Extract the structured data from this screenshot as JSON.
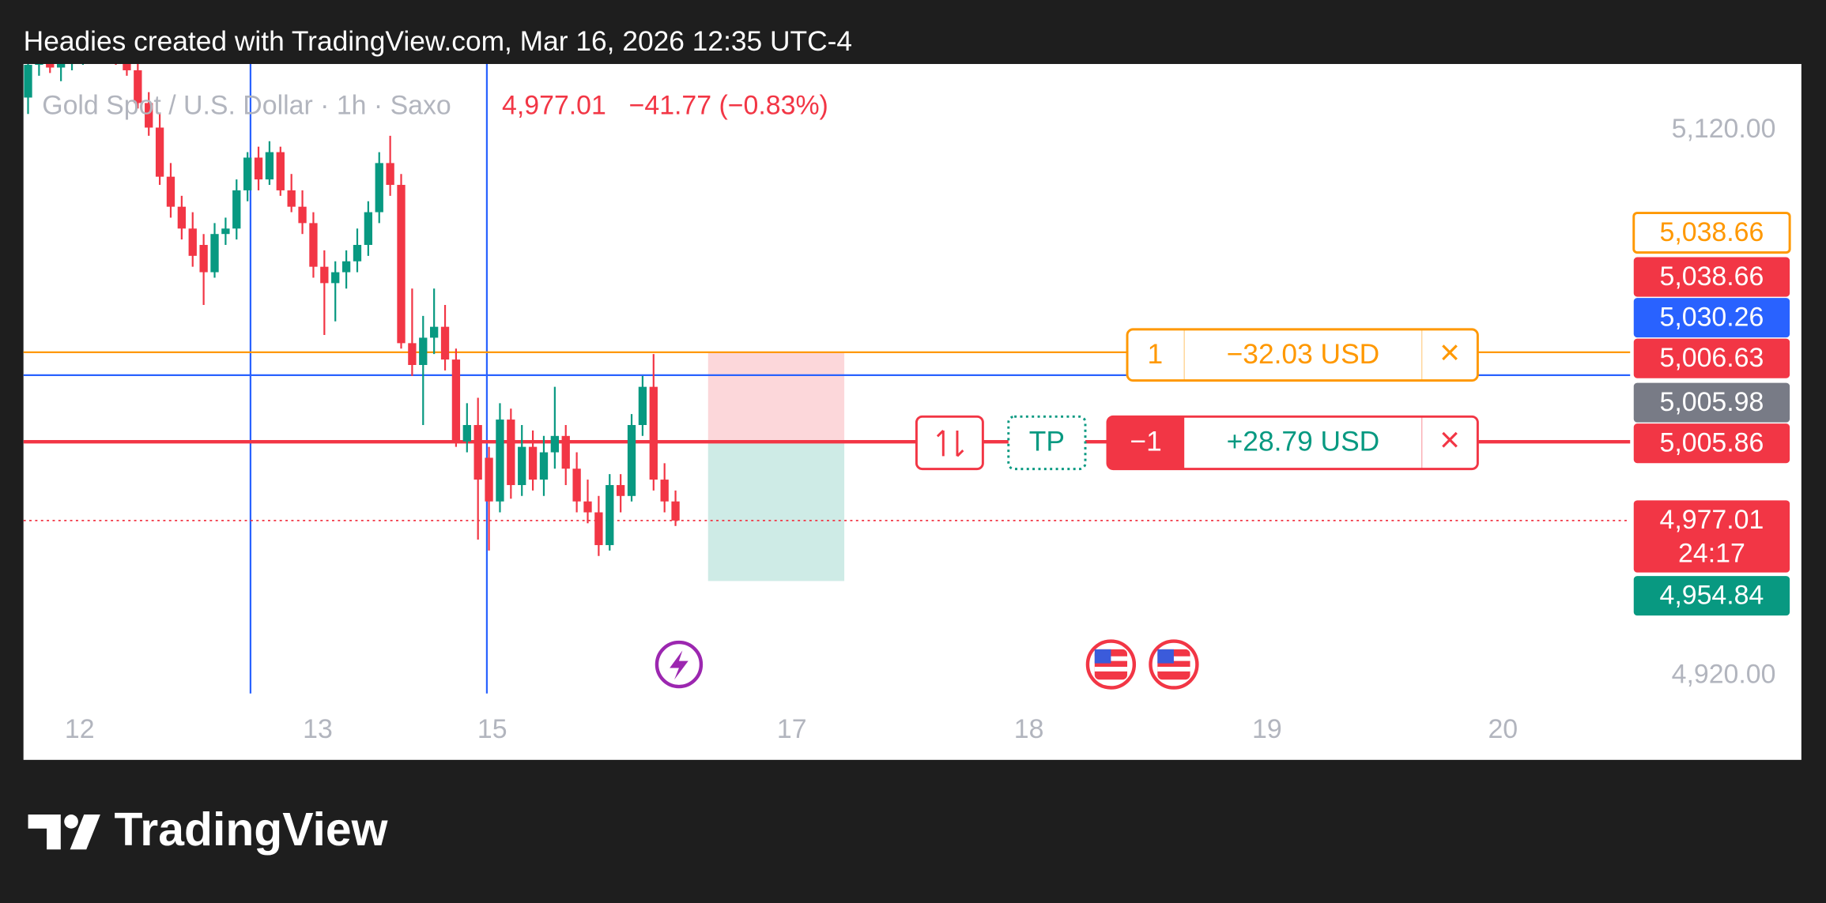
{
  "header": "Headies created with TradingView.com, Mar 16, 2026 12:35 UTC-4",
  "chart_data": {
    "type": "candlestick",
    "title": "Gold Spot / U.S. Dollar · 1h · Saxo",
    "last_price": "4,977.01",
    "change": "−41.77 (−0.83%)",
    "up_color": "#089981",
    "down_color": "#f23645",
    "candles": [
      [
        5132,
        5146,
        5126,
        5144
      ],
      [
        5144,
        5150,
        5140,
        5146
      ],
      [
        5146,
        5150,
        5141,
        5143
      ],
      [
        5143,
        5148,
        5138,
        5145
      ],
      [
        5145,
        5152,
        5142,
        5148
      ],
      [
        5148,
        5154,
        5144,
        5150
      ],
      [
        5150,
        5156,
        5146,
        5152
      ],
      [
        5152,
        5158,
        5147,
        5149
      ],
      [
        5149,
        5155,
        5144,
        5147
      ],
      [
        5147,
        5152,
        5140,
        5142
      ],
      [
        5142,
        5146,
        5128,
        5130
      ],
      [
        5130,
        5134,
        5118,
        5121
      ],
      [
        5121,
        5126,
        5100,
        5103
      ],
      [
        5103,
        5108,
        5088,
        5092
      ],
      [
        5092,
        5096,
        5080,
        5084
      ],
      [
        5084,
        5090,
        5070,
        5074
      ],
      [
        5078,
        5082,
        5056,
        5068
      ],
      [
        5068,
        5086,
        5066,
        5082
      ],
      [
        5082,
        5088,
        5078,
        5084
      ],
      [
        5084,
        5102,
        5080,
        5098
      ],
      [
        5098,
        5112,
        5094,
        5110
      ],
      [
        5110,
        5114,
        5098,
        5102
      ],
      [
        5102,
        5116,
        5100,
        5112
      ],
      [
        5112,
        5114,
        5096,
        5098
      ],
      [
        5098,
        5104,
        5090,
        5092
      ],
      [
        5092,
        5098,
        5082,
        5086
      ],
      [
        5086,
        5090,
        5066,
        5070
      ],
      [
        5070,
        5076,
        5045,
        5064
      ],
      [
        5064,
        5072,
        5050,
        5068
      ],
      [
        5068,
        5076,
        5062,
        5072
      ],
      [
        5072,
        5084,
        5068,
        5078
      ],
      [
        5078,
        5094,
        5074,
        5090
      ],
      [
        5090,
        5112,
        5086,
        5108
      ],
      [
        5108,
        5118,
        5096,
        5100
      ],
      [
        5100,
        5104,
        5040,
        5042
      ],
      [
        5042,
        5062,
        5030,
        5034
      ],
      [
        5034,
        5052,
        5012,
        5044
      ],
      [
        5044,
        5062,
        5038,
        5048
      ],
      [
        5048,
        5056,
        5032,
        5036
      ],
      [
        5036,
        5040,
        5004,
        5006
      ],
      [
        5006,
        5020,
        5002,
        5012
      ],
      [
        5012,
        5022,
        4970,
        4992
      ],
      [
        5000,
        5004,
        4966,
        4984
      ],
      [
        4984,
        5020,
        4980,
        5014
      ],
      [
        5014,
        5018,
        4985,
        4990
      ],
      [
        4990,
        5012,
        4986,
        5004
      ],
      [
        5004,
        5010,
        4988,
        4992
      ],
      [
        4992,
        5008,
        4986,
        5002
      ],
      [
        5002,
        5026,
        4996,
        5008
      ],
      [
        5008,
        5012,
        4990,
        4996
      ],
      [
        4996,
        5002,
        4980,
        4984
      ],
      [
        4984,
        4992,
        4976,
        4980
      ],
      [
        4980,
        4986,
        4964,
        4968
      ],
      [
        4968,
        4994,
        4966,
        4990
      ],
      [
        4990,
        4994,
        4980,
        4986
      ],
      [
        4986,
        5016,
        4984,
        5012
      ],
      [
        5012,
        5030,
        5008,
        5026
      ],
      [
        5026,
        5038,
        4988,
        4992
      ],
      [
        4992,
        4998,
        4980,
        4984
      ],
      [
        4984,
        4988,
        4975,
        4977
      ]
    ],
    "xlim": [
      -0.42,
      146
    ],
    "xticks": [
      {
        "value": 4.7,
        "label": "12"
      },
      {
        "value": 26.4,
        "label": "13"
      },
      {
        "value": 42.3,
        "label": "15"
      },
      {
        "value": 69.6,
        "label": "17"
      },
      {
        "value": 91.2,
        "label": "18"
      },
      {
        "value": 112.9,
        "label": "19"
      },
      {
        "value": 134.4,
        "label": "20"
      }
    ],
    "ylim": [
      4913.6,
      5144.3
    ],
    "yticks": [
      {
        "value": 5120,
        "label": "5,120.00"
      },
      {
        "value": 4920,
        "label": "4,920.00"
      }
    ],
    "price_labels": [
      {
        "value": 5038.66,
        "label": "5,038.66",
        "color": "#ff9800",
        "style": "outline"
      },
      {
        "value": 5038.66,
        "label": "5,038.66",
        "color": "#f23645",
        "style": "fill"
      },
      {
        "value": 5030.26,
        "label": "5,030.26",
        "color": "#2962ff",
        "style": "fill"
      },
      {
        "value": 5006.63,
        "label": "5,006.63",
        "color": "#f23645",
        "style": "fill"
      },
      {
        "value": 5005.98,
        "label": "5,005.98",
        "color": "#787b86",
        "style": "fill"
      },
      {
        "value": 5005.86,
        "label": "5,005.86",
        "color": "#f23645",
        "style": "fill"
      },
      {
        "value": 4977.01,
        "label": "4,977.01",
        "color": "#f23645",
        "style": "fill",
        "countdown": "24:17"
      },
      {
        "value": 4954.84,
        "label": "4,954.84",
        "color": "#089981",
        "style": "fill"
      }
    ],
    "orders": [
      {
        "qty": "1",
        "pnl": "−32.03 USD",
        "close": "×",
        "color": "#ff9800"
      },
      {
        "qty": "−1",
        "pnl": "+28.79 USD",
        "close": "×",
        "color": "#f23645",
        "tp": "TP"
      }
    ]
  },
  "footer": "TradingView"
}
